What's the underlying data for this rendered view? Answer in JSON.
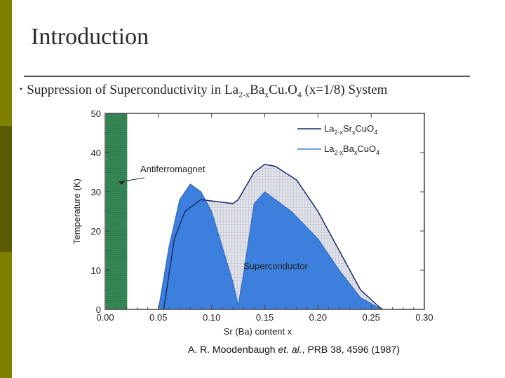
{
  "slide": {
    "title": "Introduction",
    "bullet": {
      "prefix": "Suppression of Superconductivity in La",
      "sub1": "2-x",
      "mid1": "Ba",
      "sub2": "x",
      "mid2": "Cu.O",
      "sub3": "4",
      "suffix": " (x=1/8) System"
    },
    "citation": {
      "authors": "A. R. Moodenbaugh ",
      "etal": "et. al.",
      "ref": ", PRB 38, 4596 (1987)"
    }
  },
  "colors": {
    "left_bar_olive": "#808000",
    "left_bar_dark": "#5a5a00",
    "ba_fill": "#3d7fdc",
    "sr_fill": "#d3d6e0",
    "antiferromagnet": "#2e7d4f",
    "sr_line": "#1b2a6b",
    "frame": "#444444"
  },
  "chart_data": {
    "type": "area",
    "xlabel": "Sr (Ba) content x",
    "ylabel": "Temperature (K)",
    "xlim": [
      0.0,
      0.3
    ],
    "ylim": [
      0,
      50
    ],
    "x_ticks": [
      "0.00",
      "0.05",
      "0.10",
      "0.15",
      "0.20",
      "0.25",
      "0.30"
    ],
    "y_ticks": [
      "0",
      "10",
      "20",
      "30",
      "40",
      "50"
    ],
    "series": [
      {
        "name": "La2-xSrxCuO4",
        "legend_main": "La",
        "legend_sub1": "2-x",
        "legend_mid": "Sr",
        "legend_sub2": "x",
        "legend_tail": "CuO",
        "legend_sub3": "4",
        "x": [
          0.055,
          0.065,
          0.075,
          0.09,
          0.105,
          0.12,
          0.125,
          0.14,
          0.15,
          0.16,
          0.18,
          0.2,
          0.22,
          0.24,
          0.26
        ],
        "y": [
          0,
          18,
          25,
          28,
          27.5,
          27,
          28,
          35,
          37,
          36.5,
          33,
          25,
          15,
          5,
          0
        ]
      },
      {
        "name": "La2-xBaxCuO4",
        "legend_main": "La",
        "legend_sub1": "2-x",
        "legend_mid": "Ba",
        "legend_sub2": "x",
        "legend_tail": "CuO",
        "legend_sub3": "4",
        "x": [
          0.05,
          0.06,
          0.07,
          0.08,
          0.09,
          0.1,
          0.11,
          0.12,
          0.125,
          0.13,
          0.14,
          0.15,
          0.175,
          0.2,
          0.22,
          0.24,
          0.26
        ],
        "y": [
          0,
          16,
          28,
          32,
          30,
          25,
          16,
          7,
          1,
          9,
          27,
          30,
          25,
          18,
          10,
          3,
          0
        ]
      }
    ],
    "regions": [
      {
        "label": "Antiferromagnet",
        "x_range": [
          0.0,
          0.02
        ]
      },
      {
        "label": "Superconductor"
      }
    ],
    "annotations": [
      "Antiferromagnet",
      "Superconductor"
    ],
    "legend_position": "top-right",
    "grid": false
  }
}
